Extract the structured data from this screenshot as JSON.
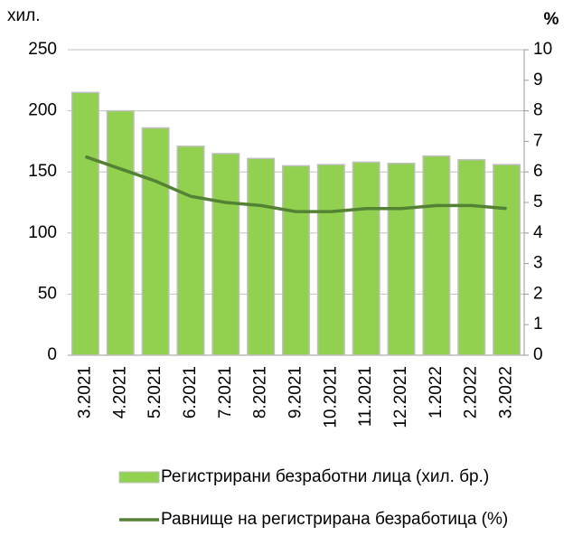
{
  "chart_data": {
    "type": "bar",
    "y_label": "хил.",
    "y2_label": "%",
    "categories": [
      "3.2021",
      "4.2021",
      "5.2021",
      "6.2021",
      "7.2021",
      "8.2021",
      "9.2021",
      "10.2021",
      "11.2021",
      "12.2021",
      "1.2022",
      "2.2022",
      "3.2022"
    ],
    "series": [
      {
        "name": "Регистрирани безработни лица (хил. бр.)",
        "type": "bar",
        "color": "#92d050",
        "values": [
          215,
          200,
          186,
          171,
          165,
          161,
          155,
          156,
          158,
          157,
          163,
          160,
          156
        ]
      },
      {
        "name": "Равнище на регистрирана безработица (%)",
        "type": "line",
        "axis": "y2",
        "color": "#548235",
        "values": [
          6.5,
          6.1,
          5.7,
          5.2,
          5.0,
          4.9,
          4.7,
          4.7,
          4.8,
          4.8,
          4.9,
          4.9,
          4.8
        ]
      }
    ],
    "ylim": [
      0,
      250
    ],
    "yticks": [
      0,
      50,
      100,
      150,
      200,
      250
    ],
    "y2lim": [
      0,
      10
    ],
    "y2ticks": [
      0,
      1,
      2,
      3,
      4,
      5,
      6,
      7,
      8,
      9,
      10
    ],
    "grid": true
  }
}
